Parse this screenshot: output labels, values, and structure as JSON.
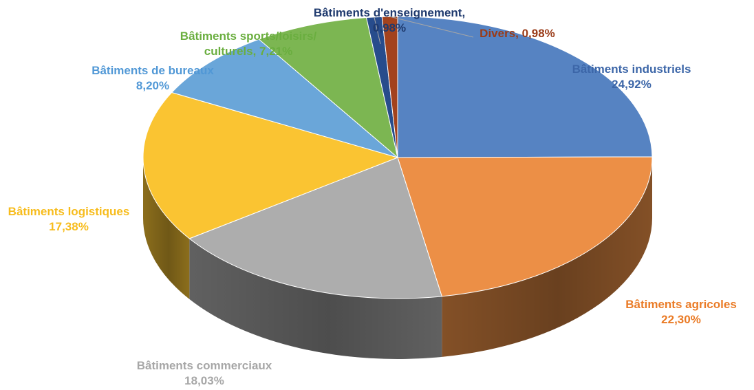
{
  "chart_data": {
    "type": "pie",
    "title": "",
    "legend": "none",
    "slices": [
      {
        "name": "Bâtiments industriels",
        "value_label": "24,92%",
        "value": 24.92,
        "color": "#5683C2",
        "label_color": "#3C66A8"
      },
      {
        "name": "Bâtiments agricoles",
        "value_label": "22,30%",
        "value": 22.3,
        "color": "#EC8F46",
        "label_color": "#EA7B26"
      },
      {
        "name": "Bâtiments commerciaux",
        "value_label": "18,03%",
        "value": 18.03,
        "color": "#ADADAD",
        "label_color": "#A7A7A7"
      },
      {
        "name": "Bâtiments logistiques",
        "value_label": "17,38%",
        "value": 17.38,
        "color": "#FAC432",
        "label_color": "#F7BC1C"
      },
      {
        "name": "Bâtiments de bureaux",
        "value_label": "8,20%",
        "value": 8.2,
        "color": "#6AA6D9",
        "label_color": "#5198D6"
      },
      {
        "name": "Bâtiments sports/loisirs/",
        "name_line2": "culturels, 7,21%",
        "value": 7.21,
        "color": "#7CB652",
        "label_color": "#6AAE3F"
      },
      {
        "name": "Bâtiments d'enseignement,",
        "value_label": "0,98%",
        "value": 0.98,
        "color": "#274C8C",
        "label_color": "#1F3A6E"
      },
      {
        "name": "Divers, 0,98%",
        "value": 0.98,
        "color": "#A3421D",
        "label_color": "#9A3B18"
      }
    ]
  }
}
